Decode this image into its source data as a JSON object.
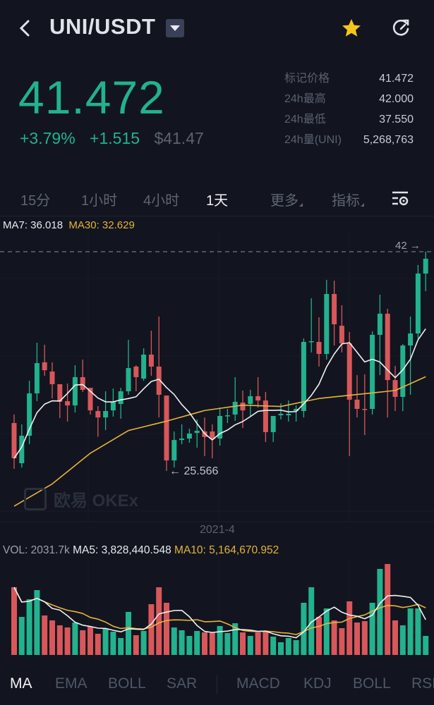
{
  "header": {
    "title": "UNI/USDT",
    "icons": {
      "back": "chevron-left-icon",
      "dropdown": "caret-down-icon",
      "favorite": "star-icon",
      "refresh": "refresh-icon"
    },
    "star_color": "#f5c518"
  },
  "ticker": {
    "last_price": "41.472",
    "change_pct": "+3.79%",
    "change_abs": "+1.515",
    "usd_price": "$41.47",
    "stats": [
      {
        "label": "标记价格",
        "value": "41.472"
      },
      {
        "label": "24h最高",
        "value": "42.000"
      },
      {
        "label": "24h最低",
        "value": "37.550"
      },
      {
        "label": "24h量(UNI)",
        "value": "5,268,763"
      }
    ]
  },
  "intervals": {
    "items": [
      "15分",
      "1小时",
      "4小时",
      "1天"
    ],
    "active": "1天",
    "more": "更多",
    "indicators": "指标",
    "settings_icon": "chart-settings-icon"
  },
  "ma_legend": {
    "ma7": "MA7: 36.018",
    "ma30": "MA30: 32.629"
  },
  "price_markers": {
    "high": "42 →",
    "low": "← 25.566"
  },
  "watermark": "欧易 OKEx",
  "date_label": "2021-4",
  "vol_legend": {
    "vol": "VOL: 2031.7k",
    "ma5": "MA5: 3,828,440.548",
    "ma10": "MA10: 5,164,670.952"
  },
  "bottom_tabs": {
    "main": [
      "MA",
      "EMA",
      "BOLL",
      "SAR"
    ],
    "sub": [
      "MACD",
      "KDJ",
      "BOLL",
      "RSI"
    ],
    "active": "MA"
  },
  "colors": {
    "up": "#22b28d",
    "down": "#d8575a",
    "ma7": "#f0f0f0",
    "ma30": "#e7b23c",
    "background": "#12151f"
  },
  "chart_data": {
    "type": "candlestick",
    "interval": "1天",
    "ohlc": [
      [
        29.16,
        29.8,
        25.73,
        26.52
      ],
      [
        26.15,
        29.06,
        25.83,
        28.21
      ],
      [
        28.21,
        32.33,
        27.58,
        31.38
      ],
      [
        31.38,
        35.18,
        30.8,
        33.65
      ],
      [
        33.71,
        35.03,
        32.7,
        33.12
      ],
      [
        33.02,
        33.71,
        31.01,
        32.07
      ],
      [
        32.07,
        32.07,
        29.53,
        30.75
      ],
      [
        30.8,
        32.12,
        29.27,
        30.48
      ],
      [
        30.48,
        33.49,
        29.95,
        32.6
      ],
      [
        32.6,
        33.92,
        31.49,
        31.65
      ],
      [
        31.8,
        31.8,
        29.8,
        30.11
      ],
      [
        30.06,
        30.43,
        28.13,
        29.58
      ],
      [
        29.58,
        31.54,
        28.63,
        30.06
      ],
      [
        30.11,
        31.75,
        29.64,
        30.75
      ],
      [
        30.59,
        31.8,
        29.48,
        31.54
      ],
      [
        31.54,
        35.4,
        31.28,
        33.28
      ],
      [
        33.39,
        33.49,
        31.54,
        32.6
      ],
      [
        32.49,
        34.76,
        32.33,
        34.29
      ],
      [
        34.29,
        36.08,
        32.7,
        33.39
      ],
      [
        33.39,
        37.14,
        29.58,
        31.28
      ],
      [
        31.22,
        31.22,
        25.566,
        26.36
      ],
      [
        26.36,
        28.53,
        25.83,
        27.89
      ],
      [
        27.89,
        29.06,
        27.58,
        28.0
      ],
      [
        28.0,
        28.74,
        27.68,
        28.37
      ],
      [
        28.42,
        29.43,
        27.31,
        28.58
      ],
      [
        28.53,
        29.58,
        26.68,
        28.11
      ],
      [
        28.53,
        29.06,
        26.52,
        27.95
      ],
      [
        28.0,
        30.32,
        27.47,
        29.69
      ],
      [
        29.69,
        30.22,
        29.16,
        29.74
      ],
      [
        29.8,
        32.6,
        29.32,
        30.75
      ],
      [
        30.69,
        31.59,
        28.79,
        30.11
      ],
      [
        30.59,
        31.65,
        29.69,
        31.17
      ],
      [
        31.17,
        32.6,
        30.32,
        30.85
      ],
      [
        30.85,
        31.49,
        27.74,
        28.48
      ],
      [
        28.48,
        29.69,
        27.74,
        29.69
      ],
      [
        29.74,
        30.64,
        29.43,
        29.85
      ],
      [
        29.74,
        30.85,
        29.27,
        29.85
      ],
      [
        30.06,
        30.48,
        29.27,
        30.22
      ],
      [
        30.06,
        35.5,
        29.58,
        35.24
      ],
      [
        35.24,
        38.51,
        34.45,
        35.29
      ],
      [
        35.24,
        37.09,
        33.39,
        34.34
      ],
      [
        34.34,
        39.89,
        33.92,
        38.83
      ],
      [
        38.83,
        39.83,
        34.97,
        36.56
      ],
      [
        36.45,
        37.98,
        34.45,
        35.13
      ],
      [
        35.13,
        35.98,
        26.68,
        30.91
      ],
      [
        30.91,
        32.75,
        29.58,
        30.22
      ],
      [
        30.22,
        32.81,
        28.26,
        30.17
      ],
      [
        30.22,
        36.03,
        29.8,
        35.77
      ],
      [
        35.77,
        38.78,
        32.75,
        37.35
      ],
      [
        37.35,
        37.72,
        29.58,
        32.38
      ],
      [
        32.38,
        33.44,
        30.06,
        31.12
      ],
      [
        31.12,
        35.08,
        30.06,
        34.97
      ],
      [
        34.97,
        37.14,
        31.28,
        35.87
      ],
      [
        35.87,
        41.0,
        35.5,
        40.36
      ],
      [
        40.36,
        42.0,
        39.04,
        41.472
      ]
    ],
    "ma30_every5": [
      22.93,
      24.6,
      26.9,
      28.6,
      29.3,
      30.1,
      30.5,
      30.4,
      31.0,
      31.3,
      31.6,
      32.63
    ],
    "volume_k": [
      7219,
      4061,
      5941,
      6918,
      4211,
      3685,
      3158,
      2933,
      3459,
      2632,
      3008,
      2256,
      2782,
      2482,
      1805,
      4587,
      2106,
      2557,
      5414,
      7219,
      5565,
      2933,
      2632,
      2030,
      2557,
      2406,
      2331,
      3083,
      2331,
      3384,
      2406,
      2030,
      2406,
      2482,
      1955,
      1354,
      1805,
      1579,
      5565,
      7219,
      4061,
      4963,
      3685,
      2858,
      5715,
      3459,
      3610,
      5565,
      9174,
      9701,
      3685,
      3158,
      4963,
      4963,
      2031.7
    ],
    "y_range": [
      22,
      42.5
    ]
  }
}
